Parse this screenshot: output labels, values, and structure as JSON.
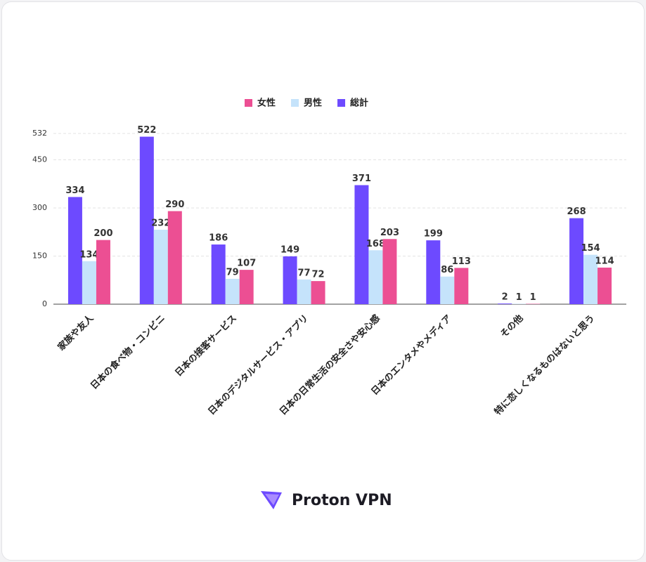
{
  "chart_data": {
    "type": "bar",
    "categories": [
      "家族や友人",
      "日本の食べ物・コンビニ",
      "日本の接客サービス",
      "日本のデジタルサービス・アプリ",
      "日本の日常生活の安全さや安心感",
      "日本のエンタメやメディア",
      "その他",
      "特に恋しくなるものはないと思う"
    ],
    "series": [
      {
        "name": "女性",
        "color": "#ec4f93",
        "values": [
          200,
          290,
          107,
          72,
          203,
          113,
          1,
          114
        ]
      },
      {
        "name": "男性",
        "color": "#c5e3fb",
        "values": [
          134,
          232,
          79,
          77,
          168,
          86,
          1,
          154
        ]
      },
      {
        "name": "総計",
        "color": "#6d4aff",
        "values": [
          334,
          522,
          186,
          149,
          371,
          199,
          2,
          268
        ]
      }
    ],
    "ylim": [
      0,
      532
    ],
    "yticks": [
      0,
      150,
      300,
      450,
      532
    ],
    "grid": true,
    "legend": "top",
    "logo": "Proton VPN"
  }
}
